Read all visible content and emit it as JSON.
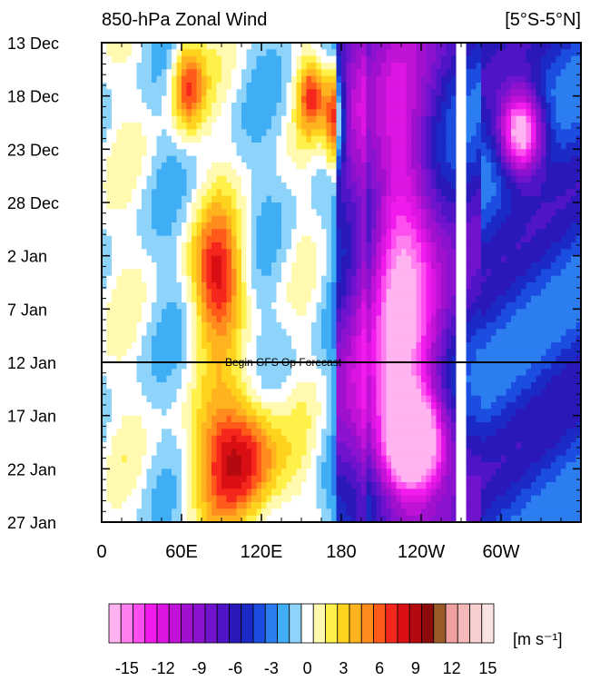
{
  "chart_data": {
    "type": "heatmap",
    "title": "850-hPa Zonal Wind",
    "region_label": "[5°S-5°N]",
    "units_label": "[m s⁻¹]",
    "x_axis": {
      "range_deg_east": [
        0,
        360
      ],
      "ticks": [
        {
          "lon": 0,
          "label": "0"
        },
        {
          "lon": 60,
          "label": "60E"
        },
        {
          "lon": 120,
          "label": "120E"
        },
        {
          "lon": 180,
          "label": "180"
        },
        {
          "lon": 240,
          "label": "120W"
        },
        {
          "lon": 300,
          "label": "60W"
        }
      ]
    },
    "y_axis": {
      "range_days": [
        0,
        45
      ],
      "direction": "top-to-bottom",
      "ticks": [
        {
          "day": 0,
          "label": "13 Dec"
        },
        {
          "day": 5,
          "label": "18 Dec"
        },
        {
          "day": 10,
          "label": "23 Dec"
        },
        {
          "day": 15,
          "label": "28 Dec"
        },
        {
          "day": 20,
          "label": "2 Jan"
        },
        {
          "day": 25,
          "label": "7 Jan"
        },
        {
          "day": 30,
          "label": "12 Jan"
        },
        {
          "day": 35,
          "label": "17 Jan"
        },
        {
          "day": 40,
          "label": "22 Jan"
        },
        {
          "day": 45,
          "label": "27 Jan"
        }
      ]
    },
    "forecast_line": {
      "day": 30,
      "label": "Begin GFS Op Forecast"
    },
    "colorbar": {
      "levels": [
        -16,
        -15,
        -14,
        -13,
        -12,
        -11,
        -10,
        -9,
        -8,
        -7,
        -6,
        -5,
        -4,
        -3,
        -2,
        -1,
        0,
        1,
        2,
        3,
        4,
        5,
        6,
        7,
        8,
        9,
        10,
        11,
        12,
        13,
        14,
        15,
        16
      ],
      "colors": [
        "#ffb3f0",
        "#ff7ff0",
        "#ff4ef0",
        "#f21bee",
        "#dc15e3",
        "#c112d7",
        "#a210cf",
        "#8b12cf",
        "#6f13cc",
        "#4f14c6",
        "#2a18b8",
        "#1b2ac4",
        "#1b4ee0",
        "#2b7df0",
        "#40aef5",
        "#8ed4fa",
        "#ffffff",
        "#fffab0",
        "#fff14a",
        "#ffd21e",
        "#ffb31e",
        "#ff8c1c",
        "#ff5a19",
        "#f5261b",
        "#d90f14",
        "#b40a0f",
        "#8c0a0a",
        "#9b5a28",
        "#f0a0a0",
        "#f5b8b8",
        "#f8cfcf",
        "#fbe2e2"
      ],
      "tick_labels": [
        {
          "level": -15,
          "label": "-15"
        },
        {
          "level": -12,
          "label": "-12"
        },
        {
          "level": -9,
          "label": "-9"
        },
        {
          "level": -6,
          "label": "-6"
        },
        {
          "level": -3,
          "label": "-3"
        },
        {
          "level": 0,
          "label": "0"
        },
        {
          "level": 3,
          "label": "3"
        },
        {
          "level": 6,
          "label": "6"
        },
        {
          "level": 9,
          "label": "9"
        },
        {
          "level": 12,
          "label": "12"
        },
        {
          "level": 15,
          "label": "15"
        }
      ]
    },
    "features": [
      {
        "kind": "westerly",
        "lon": [
          55,
          75
        ],
        "days": [
          0,
          8
        ],
        "peak": 7
      },
      {
        "kind": "westerly",
        "lon": [
          150,
          165
        ],
        "days": [
          2,
          8
        ],
        "peak": 7
      },
      {
        "kind": "westerly",
        "lon": [
          170,
          180
        ],
        "days": [
          3,
          12
        ],
        "peak": 8
      },
      {
        "kind": "westerly",
        "lon": [
          70,
          105
        ],
        "days": [
          16,
          28
        ],
        "peak": 8
      },
      {
        "kind": "westerly",
        "lon": [
          70,
          135
        ],
        "days": [
          33,
          45
        ],
        "peak": 9
      },
      {
        "kind": "easterly",
        "lon": [
          200,
          250
        ],
        "days": [
          0,
          45
        ],
        "peak": -12
      },
      {
        "kind": "easterly",
        "lon": [
          210,
          260
        ],
        "days": [
          33,
          42
        ],
        "peak": -16
      },
      {
        "kind": "easterly",
        "lon": [
          300,
          330
        ],
        "days": [
          5,
          12
        ],
        "peak": -15
      }
    ]
  }
}
